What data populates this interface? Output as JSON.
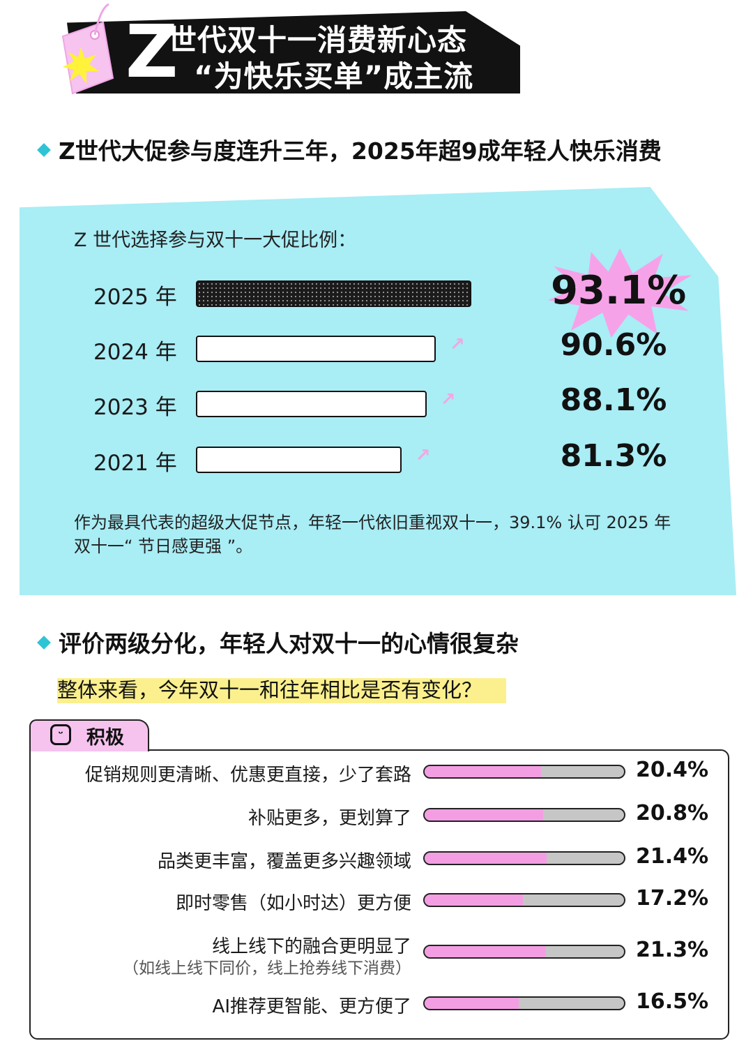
{
  "header": {
    "logo_letter": "Z",
    "title_line1": "世代双十一消费新心态",
    "title_line2": "“为快乐买单”成主流"
  },
  "section1": {
    "heading": "Z世代大促参与度连升三年，2025年超9成年轻人快乐消费"
  },
  "panel": {
    "caption": "Z 世代选择参与双十一大促比例：",
    "note": "作为最具代表的超级大促节点，年轻一代依旧重视双十一，39.1% 认可 2025 年双十一“ 节日感更强 ”。"
  },
  "section2": {
    "heading": "评价两级分化，年轻人对双十一的心情很复杂",
    "question": "整体来看，今年双十一和往年相比是否有变化？",
    "box_label": "积极"
  },
  "colors": {
    "panel_cyan": "#a9edf5",
    "accent_pink": "#f39ee3",
    "bar_track_gray": "#c6c6c6",
    "diamond_teal": "#2ec4d6",
    "highlight_yellow": "#fbf08d"
  },
  "chart_data": [
    {
      "type": "bar",
      "orientation": "horizontal",
      "title": "Z 世代选择参与双十一大促比例：",
      "categories": [
        "2025 年",
        "2024 年",
        "2023 年",
        "2021 年"
      ],
      "values": [
        93.1,
        90.6,
        88.1,
        81.3
      ],
      "value_labels": [
        "93.1%",
        "90.6%",
        "88.1%",
        "81.3%"
      ],
      "unit": "%",
      "xlim": [
        0,
        100
      ],
      "grid": false
    },
    {
      "type": "bar",
      "orientation": "horizontal",
      "title": "积极",
      "categories": [
        "促销规则更清晰、优惠更直接，少了套路",
        "补贴更多，更划算了",
        "品类更丰富，覆盖更多兴趣领域",
        "即时零售（如小时达）更方便",
        "线上线下的融合更明显了",
        "AI推荐更智能、更方便了"
      ],
      "sublabels": [
        "",
        "",
        "",
        "",
        "（如线上线下同价，线上抢券线下消费）",
        ""
      ],
      "values": [
        20.4,
        20.8,
        21.4,
        17.2,
        21.3,
        16.5
      ],
      "value_labels": [
        "20.4%",
        "20.8%",
        "21.4%",
        "17.2%",
        "21.3%",
        "16.5%"
      ],
      "unit": "%",
      "xlim": [
        0,
        35
      ],
      "grid": false
    }
  ]
}
